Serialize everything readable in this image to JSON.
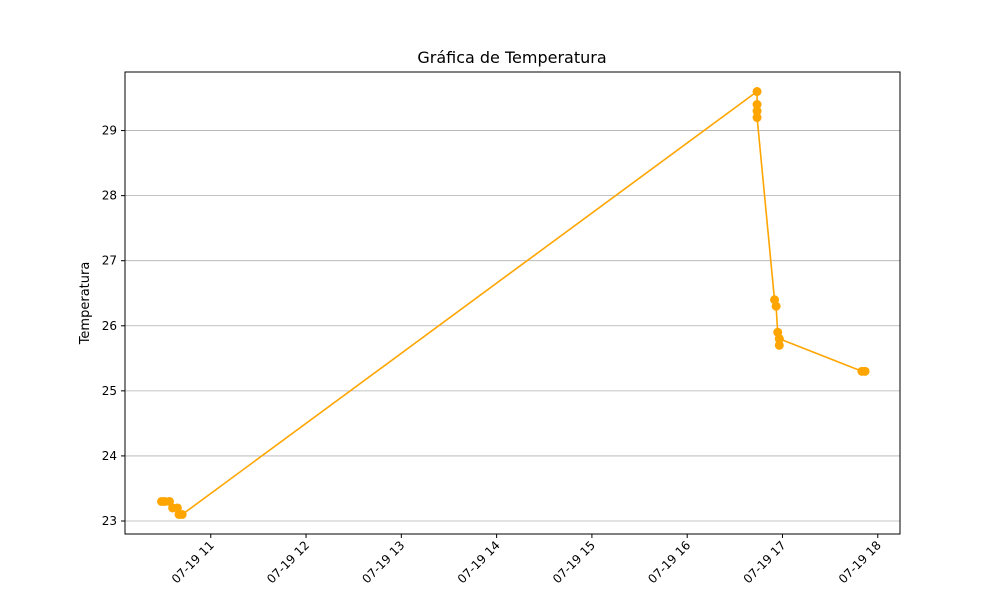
{
  "chart_data": {
    "type": "line",
    "title": "Gráfica de Temperatura",
    "xlabel": "",
    "ylabel": "Temperatura",
    "x_axis": "time",
    "date": "2024-07-19",
    "xlim": [
      "10:06",
      "18:14"
    ],
    "ylim": [
      22.8,
      29.9
    ],
    "x_ticks": [
      {
        "time": "11:00",
        "label": "07-19 11"
      },
      {
        "time": "12:00",
        "label": "07-19 12"
      },
      {
        "time": "13:00",
        "label": "07-19 13"
      },
      {
        "time": "14:00",
        "label": "07-19 14"
      },
      {
        "time": "15:00",
        "label": "07-19 15"
      },
      {
        "time": "16:00",
        "label": "07-19 16"
      },
      {
        "time": "17:00",
        "label": "07-19 17"
      },
      {
        "time": "18:00",
        "label": "07-19 18"
      }
    ],
    "y_ticks": [
      23,
      24,
      25,
      26,
      27,
      28,
      29
    ],
    "grid": "horizontal",
    "color": "#FFA500",
    "marker": "circle",
    "points": [
      {
        "time": "10:29",
        "value": 23.3
      },
      {
        "time": "10:31",
        "value": 23.3
      },
      {
        "time": "10:34",
        "value": 23.3
      },
      {
        "time": "10:36",
        "value": 23.2
      },
      {
        "time": "10:39",
        "value": 23.2
      },
      {
        "time": "10:40",
        "value": 23.1
      },
      {
        "time": "10:42",
        "value": 23.1
      },
      {
        "time": "16:44",
        "value": 29.6
      },
      {
        "time": "16:44",
        "value": 29.4
      },
      {
        "time": "16:44",
        "value": 29.3
      },
      {
        "time": "16:44",
        "value": 29.2
      },
      {
        "time": "16:55",
        "value": 26.4
      },
      {
        "time": "16:56",
        "value": 26.3
      },
      {
        "time": "16:57",
        "value": 25.9
      },
      {
        "time": "16:58",
        "value": 25.8
      },
      {
        "time": "16:58",
        "value": 25.7
      },
      {
        "time": "16:58",
        "value": 25.8
      },
      {
        "time": "17:50",
        "value": 25.3
      },
      {
        "time": "17:52",
        "value": 25.3
      }
    ]
  }
}
